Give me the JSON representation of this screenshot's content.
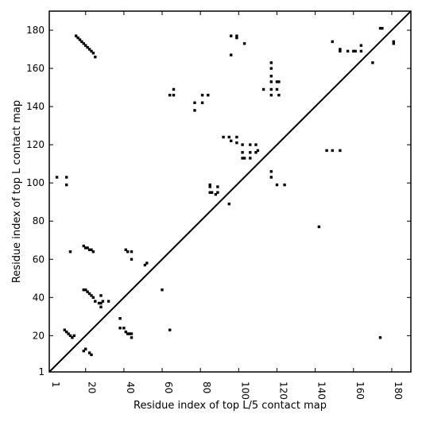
{
  "chart_data": {
    "type": "scatter",
    "title": "",
    "xlabel": "Residue index of top L/5 contact map",
    "ylabel": "Residue index of top L contact map",
    "xlim": [
      1,
      190
    ],
    "ylim": [
      1,
      190
    ],
    "x_ticks": [
      1,
      20,
      40,
      60,
      80,
      100,
      120,
      140,
      160,
      180
    ],
    "y_ticks": [
      1,
      20,
      40,
      60,
      80,
      100,
      120,
      140,
      160,
      180
    ],
    "x_tick_rotation": -90,
    "grid": false,
    "legend": "none",
    "diagonal_line": true,
    "marker": "square",
    "color": "#000000",
    "lower_triangle_points": [
      [
        15,
        177
      ],
      [
        16,
        176
      ],
      [
        17,
        175
      ],
      [
        18,
        174
      ],
      [
        19,
        173
      ],
      [
        20,
        172
      ],
      [
        21,
        171
      ],
      [
        22,
        170
      ],
      [
        23,
        169
      ],
      [
        24,
        168
      ],
      [
        25,
        166
      ],
      [
        19,
        67
      ],
      [
        20,
        66
      ],
      [
        21,
        66
      ],
      [
        22,
        65
      ],
      [
        23,
        65
      ],
      [
        24,
        64
      ],
      [
        19,
        44
      ],
      [
        20,
        44
      ],
      [
        21,
        43
      ],
      [
        22,
        42
      ],
      [
        23,
        41
      ],
      [
        24,
        40
      ],
      [
        25,
        38
      ],
      [
        27,
        37
      ],
      [
        28,
        37
      ],
      [
        29,
        38
      ],
      [
        28,
        35
      ],
      [
        28,
        41
      ],
      [
        32,
        38
      ],
      [
        9,
        23
      ],
      [
        10,
        22
      ],
      [
        11,
        21
      ],
      [
        12,
        20
      ],
      [
        13,
        19
      ],
      [
        14,
        20
      ],
      [
        19,
        12
      ],
      [
        20,
        13
      ],
      [
        22,
        11
      ],
      [
        23,
        10
      ],
      [
        12,
        64
      ],
      [
        5,
        103
      ],
      [
        10,
        103
      ],
      [
        10,
        99
      ]
    ],
    "upper_triangle_points": [
      [
        38,
        29
      ],
      [
        38,
        24
      ],
      [
        40,
        24
      ],
      [
        41,
        22
      ],
      [
        42,
        21
      ],
      [
        43,
        21
      ],
      [
        44,
        21
      ],
      [
        44,
        19
      ],
      [
        44,
        60
      ],
      [
        41,
        65
      ],
      [
        42,
        64
      ],
      [
        44,
        64
      ],
      [
        51,
        57
      ],
      [
        52,
        58
      ],
      [
        60,
        44
      ],
      [
        64,
        23
      ],
      [
        64,
        146
      ],
      [
        66,
        146
      ],
      [
        66,
        149
      ],
      [
        77,
        138
      ],
      [
        77,
        142
      ],
      [
        81,
        142
      ],
      [
        81,
        146
      ],
      [
        84,
        146
      ],
      [
        85,
        99
      ],
      [
        85,
        98
      ],
      [
        85,
        95
      ],
      [
        86,
        95
      ],
      [
        88,
        94
      ],
      [
        89,
        95
      ],
      [
        89,
        98
      ],
      [
        95,
        89
      ],
      [
        92,
        124
      ],
      [
        95,
        124
      ],
      [
        96,
        122
      ],
      [
        99,
        124
      ],
      [
        99,
        121
      ],
      [
        102,
        120
      ],
      [
        102,
        116
      ],
      [
        102,
        113
      ],
      [
        103,
        113
      ],
      [
        106,
        113
      ],
      [
        106,
        116
      ],
      [
        106,
        120
      ],
      [
        109,
        120
      ],
      [
        109,
        116
      ],
      [
        110,
        117
      ],
      [
        96,
        167
      ],
      [
        96,
        177
      ],
      [
        99,
        177
      ],
      [
        99,
        176
      ],
      [
        103,
        173
      ],
      [
        113,
        149
      ],
      [
        117,
        146
      ],
      [
        117,
        149
      ],
      [
        117,
        153
      ],
      [
        117,
        156
      ],
      [
        117,
        160
      ],
      [
        117,
        163
      ],
      [
        120,
        149
      ],
      [
        120,
        153
      ],
      [
        121,
        153
      ],
      [
        121,
        146
      ],
      [
        117,
        106
      ],
      [
        117,
        103
      ],
      [
        120,
        99
      ],
      [
        124,
        99
      ],
      [
        142,
        77
      ],
      [
        146,
        117
      ],
      [
        149,
        117
      ],
      [
        153,
        117
      ],
      [
        149,
        174
      ],
      [
        153,
        169
      ],
      [
        153,
        170
      ],
      [
        157,
        169
      ],
      [
        160,
        169
      ],
      [
        161,
        169
      ],
      [
        164,
        169
      ],
      [
        164,
        172
      ],
      [
        170,
        163
      ],
      [
        174,
        181
      ],
      [
        175,
        181
      ],
      [
        181,
        174
      ],
      [
        181,
        173
      ],
      [
        174,
        19
      ]
    ]
  }
}
